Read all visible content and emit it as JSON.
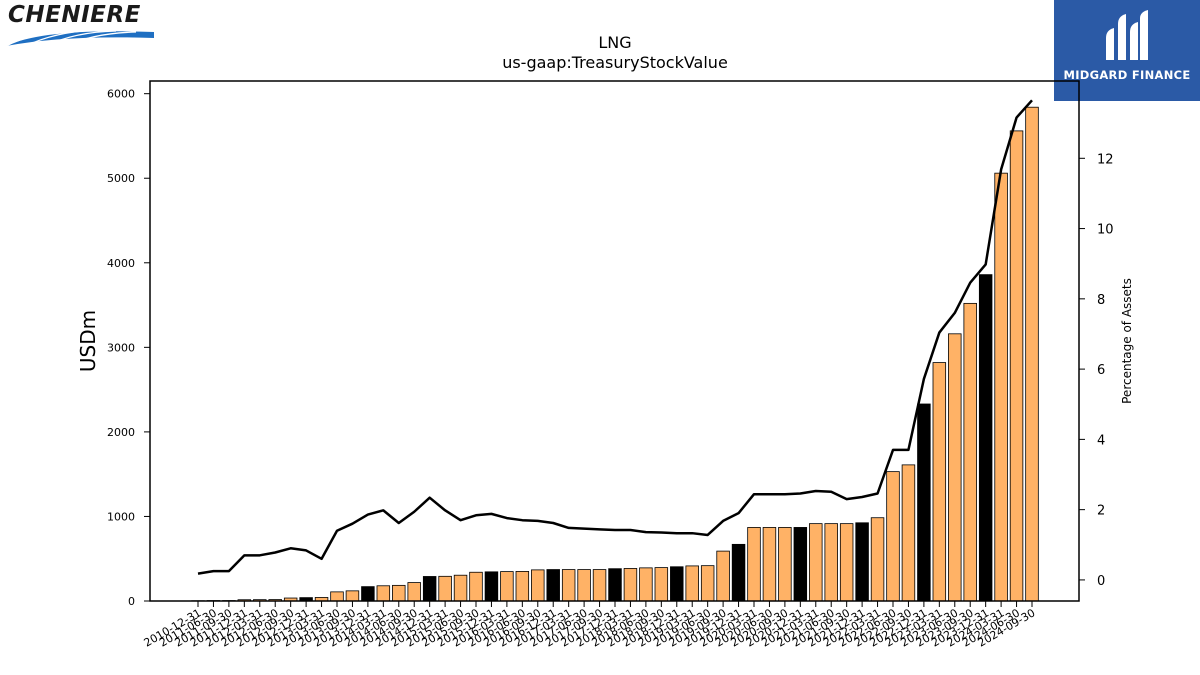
{
  "branding": {
    "company_logo_text": "CHENIERE",
    "watermark_text": "MIDGARD FINANCE",
    "watermark_bg": "#2b5aa6"
  },
  "chart_data": {
    "type": "bar",
    "title": "LNG",
    "subtitle": "us-gaap:TreasuryStockValue",
    "ylabel": "USDm",
    "y2label": "Percentage of Assets",
    "ylim": [
      0,
      6150
    ],
    "y2lim": [
      -0.6,
      14.2
    ],
    "yticks": [
      0,
      1000,
      2000,
      3000,
      4000,
      5000,
      6000
    ],
    "y2ticks": [
      0,
      2,
      4,
      6,
      8,
      10,
      12
    ],
    "bar_color_default": "#ffb266",
    "bar_color_highlight": "#000000",
    "line_color": "#000000",
    "categories": [
      "2010-12-31",
      "2011-06-30",
      "2011-09-30",
      "2011-12-31",
      "2012-03-31",
      "2012-06-30",
      "2012-09-30",
      "2012-12-31",
      "2013-03-31",
      "2013-06-30",
      "2013-09-30",
      "2013-12-31",
      "2014-03-31",
      "2014-06-30",
      "2014-09-30",
      "2014-12-31",
      "2015-03-31",
      "2015-06-30",
      "2015-09-30",
      "2015-12-31",
      "2016-03-31",
      "2016-06-30",
      "2016-09-30",
      "2016-12-31",
      "2017-03-31",
      "2017-06-30",
      "2017-09-30",
      "2017-12-31",
      "2018-03-31",
      "2018-06-30",
      "2018-09-30",
      "2018-12-31",
      "2019-03-31",
      "2019-06-30",
      "2019-09-30",
      "2019-12-31",
      "2020-03-31",
      "2020-06-30",
      "2020-09-30",
      "2020-12-31",
      "2021-03-31",
      "2021-06-30",
      "2021-09-30",
      "2021-12-31",
      "2022-03-31",
      "2022-06-30",
      "2022-09-30",
      "2022-12-31",
      "2023-03-31",
      "2023-06-30",
      "2023-09-30",
      "2023-12-31",
      "2024-03-31",
      "2024-06-30",
      "2024-09-30"
    ],
    "series": [
      {
        "type": "bar",
        "values": [
          3,
          5,
          5,
          15,
          16,
          17,
          35,
          40,
          42,
          108,
          120,
          170,
          180,
          185,
          218,
          290,
          292,
          305,
          340,
          345,
          348,
          350,
          368,
          372,
          372,
          372,
          372,
          382,
          385,
          392,
          395,
          405,
          415,
          418,
          590,
          670,
          870,
          870,
          870,
          870,
          915,
          915,
          915,
          925,
          985,
          1530,
          1610,
          2330,
          2820,
          3160,
          3520,
          3860,
          5060,
          5560,
          5840
        ],
        "highlight": [
          false,
          false,
          false,
          false,
          false,
          false,
          false,
          true,
          false,
          false,
          false,
          true,
          false,
          false,
          false,
          true,
          false,
          false,
          false,
          true,
          false,
          false,
          false,
          true,
          false,
          false,
          false,
          true,
          false,
          false,
          false,
          true,
          false,
          false,
          false,
          true,
          false,
          false,
          false,
          true,
          false,
          false,
          false,
          true,
          false,
          false,
          false,
          true,
          false,
          false,
          false,
          true,
          false,
          false,
          false
        ]
      },
      {
        "type": "line",
        "axis": "right",
        "values": [
          0.18,
          0.25,
          0.25,
          0.7,
          0.7,
          0.78,
          0.9,
          0.84,
          0.6,
          1.4,
          1.6,
          1.86,
          1.98,
          1.62,
          1.94,
          2.34,
          1.98,
          1.7,
          1.84,
          1.88,
          1.76,
          1.7,
          1.68,
          1.62,
          1.48,
          1.46,
          1.44,
          1.42,
          1.42,
          1.36,
          1.35,
          1.33,
          1.33,
          1.28,
          1.68,
          1.9,
          2.44,
          2.44,
          2.44,
          2.46,
          2.53,
          2.51,
          2.3,
          2.36,
          2.46,
          3.7,
          3.7,
          5.72,
          7.04,
          7.6,
          8.46,
          8.98,
          11.68,
          13.16,
          13.65
        ]
      }
    ]
  }
}
